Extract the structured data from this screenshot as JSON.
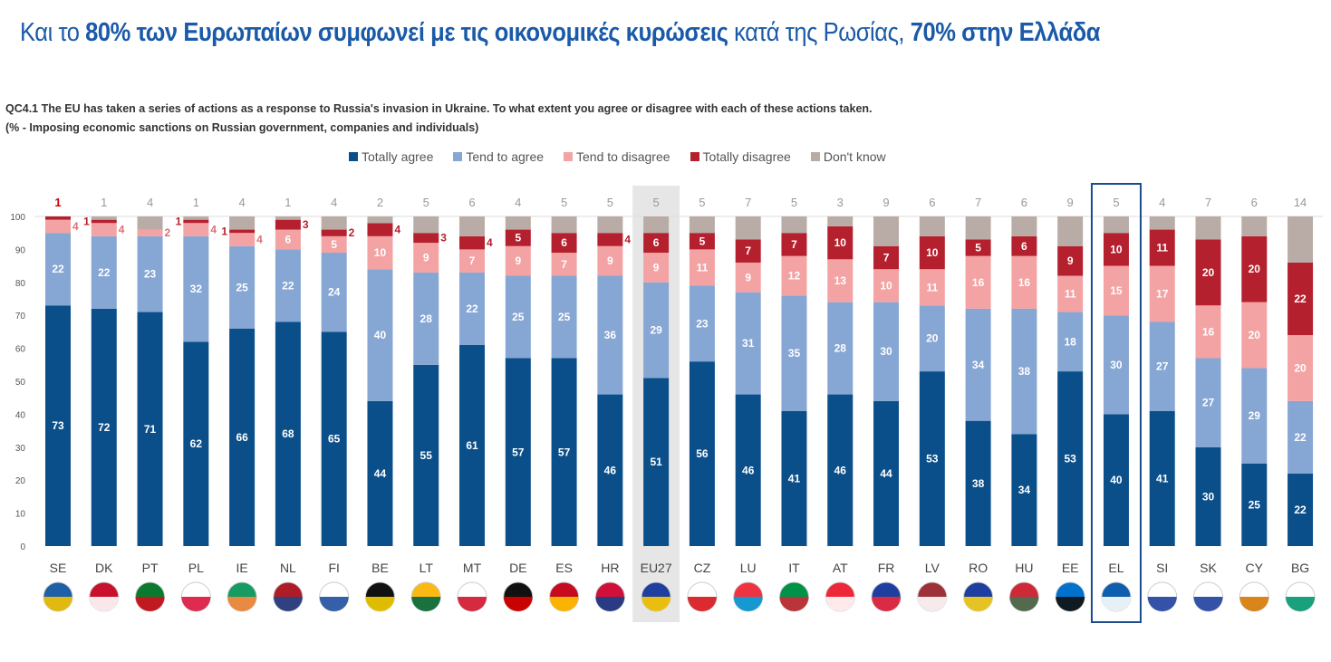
{
  "title": {
    "p1": "Και το ",
    "b1": "80% των Ευρωπαίων συμφωνεί με τις οικονομικές κυρώσεις",
    "p2": " κατά της Ρωσίας, ",
    "b2": "70% στην Ελλάδα"
  },
  "question": {
    "line1": "QC4.1 The EU has taken a series of actions as a response to Russia's invasion in Ukraine. To what extent you agree or disagree with each of these actions taken.",
    "line2": "(% - Imposing economic sanctions on Russian government, companies and individuals)"
  },
  "chart_data": {
    "type": "bar",
    "stacked": true,
    "yticks": [
      0,
      10,
      20,
      30,
      40,
      50,
      60,
      70,
      80,
      90,
      100
    ],
    "ylim": [
      0,
      100
    ],
    "legend_position": "top",
    "highlight": {
      "shaded": "EU27",
      "boxed": "EL"
    },
    "categories": [
      "SE",
      "DK",
      "PT",
      "PL",
      "IE",
      "NL",
      "FI",
      "BE",
      "LT",
      "MT",
      "DE",
      "ES",
      "HR",
      "EU27",
      "CZ",
      "LU",
      "IT",
      "AT",
      "FR",
      "LV",
      "RO",
      "HU",
      "EE",
      "EL",
      "SI",
      "SK",
      "CY",
      "BG"
    ],
    "series": [
      {
        "name": "Totally agree",
        "color": "#0b4f8a",
        "values": [
          73,
          72,
          71,
          62,
          66,
          68,
          65,
          44,
          55,
          61,
          57,
          57,
          46,
          51,
          56,
          46,
          41,
          46,
          44,
          53,
          38,
          34,
          53,
          40,
          41,
          30,
          25,
          22
        ]
      },
      {
        "name": "Tend to agree",
        "color": "#86a6d4",
        "values": [
          22,
          22,
          23,
          32,
          25,
          22,
          24,
          40,
          28,
          22,
          25,
          25,
          36,
          29,
          23,
          31,
          35,
          28,
          30,
          20,
          34,
          38,
          18,
          30,
          27,
          27,
          29,
          22
        ]
      },
      {
        "name": "Tend to disagree",
        "color": "#f3a3a3",
        "values": [
          4,
          4,
          2,
          4,
          4,
          6,
          5,
          10,
          9,
          7,
          9,
          7,
          9,
          9,
          11,
          9,
          12,
          13,
          10,
          11,
          16,
          16,
          11,
          15,
          17,
          16,
          20,
          20
        ]
      },
      {
        "name": "Totally disagree",
        "color": "#b5202e",
        "values": [
          1,
          1,
          0,
          1,
          1,
          3,
          2,
          4,
          3,
          4,
          5,
          6,
          4,
          6,
          5,
          7,
          7,
          10,
          7,
          10,
          5,
          6,
          9,
          10,
          11,
          20,
          20,
          22
        ]
      },
      {
        "name": "Don't know",
        "color": "#b9aca6",
        "values": [
          0,
          1,
          4,
          1,
          4,
          1,
          4,
          2,
          5,
          6,
          4,
          5,
          5,
          5,
          5,
          7,
          5,
          3,
          9,
          6,
          7,
          6,
          9,
          5,
          4,
          7,
          6,
          14
        ]
      }
    ]
  },
  "flags": {
    "SE": [
      "#1f5fa8",
      "#f5c400"
    ],
    "DK": [
      "#c8102e",
      "#fff"
    ],
    "PT": [
      "#0a7a2f",
      "#d4101f"
    ],
    "PL": [
      "#fff",
      "#dc143c"
    ],
    "IE": [
      "#169b62",
      "#ff883e"
    ],
    "NL": [
      "#ae1c28",
      "#21468b"
    ],
    "FI": [
      "#fff",
      "#1e4fa0"
    ],
    "BE": [
      "#111",
      "#f5d000"
    ],
    "LT": [
      "#fdb913",
      "#006a44"
    ],
    "MT": [
      "#fff",
      "#cf142b"
    ],
    "DE": [
      "#111",
      "#dd0000"
    ],
    "ES": [
      "#c60b1e",
      "#ffc400"
    ],
    "HR": [
      "#d0103a",
      "#17408c"
    ],
    "EU27": [
      "#1f3fa0",
      "#ffcc00"
    ],
    "CZ": [
      "#fff",
      "#d7141a"
    ],
    "LU": [
      "#ef3340",
      "#00a3e0"
    ],
    "IT": [
      "#009246",
      "#ce2b37"
    ],
    "AT": [
      "#ed2939",
      "#fff"
    ],
    "FR": [
      "#1f3fa0",
      "#ed2939"
    ],
    "LV": [
      "#9e3039",
      "#fff"
    ],
    "RO": [
      "#1f3fa0",
      "#fcd116"
    ],
    "HU": [
      "#ce2939",
      "#477050"
    ],
    "EE": [
      "#0072ce",
      "#111"
    ],
    "EL": [
      "#0d5eaf",
      "#fff"
    ],
    "SI": [
      "#fff",
      "#1f3fa0"
    ],
    "SK": [
      "#fff",
      "#1f3fa0"
    ],
    "CY": [
      "#fff",
      "#d57800"
    ],
    "BG": [
      "#fff",
      "#00966e"
    ]
  }
}
